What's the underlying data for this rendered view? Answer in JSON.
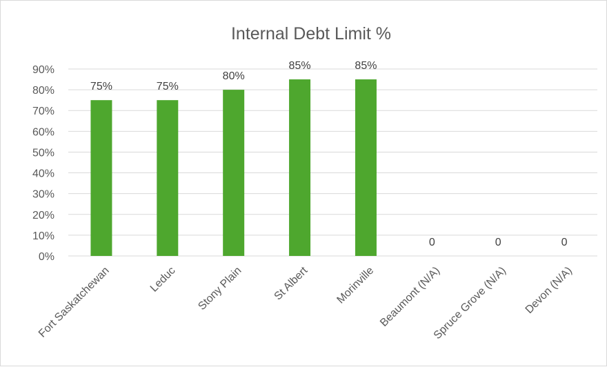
{
  "chart_data": {
    "type": "bar",
    "title": "Internal Debt Limit %",
    "xlabel": "",
    "ylabel": "",
    "categories": [
      "Fort Saskatchewan",
      "Leduc",
      "Stony Plain",
      "St Albert",
      "Morinville",
      "Beaumont (N/A)",
      "Spruce Grove (N/A)",
      "Devon (N/A)"
    ],
    "values": [
      75,
      75,
      80,
      85,
      85,
      0,
      0,
      0
    ],
    "data_labels": [
      "75%",
      "75%",
      "80%",
      "85%",
      "85%",
      "0",
      "0",
      "0"
    ],
    "ylim": [
      0,
      90
    ],
    "yticks": [
      0,
      10,
      20,
      30,
      40,
      50,
      60,
      70,
      80,
      90
    ],
    "ytick_labels": [
      "0%",
      "10%",
      "20%",
      "30%",
      "40%",
      "50%",
      "60%",
      "70%",
      "80%",
      "90%"
    ],
    "grid": true,
    "legend": "none",
    "colors": {
      "bar": "#4ea72e",
      "gridline": "#d9d9d9",
      "text": "#595959"
    }
  }
}
